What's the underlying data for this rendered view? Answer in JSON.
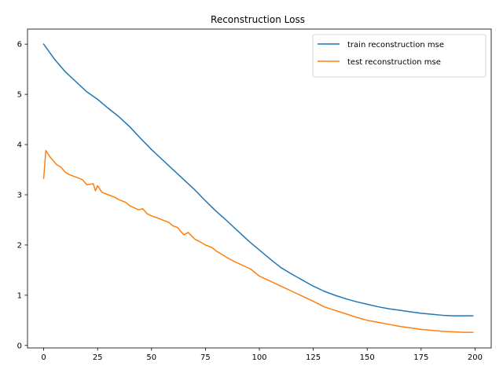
{
  "chart_data": {
    "type": "line",
    "title": "Reconstruction Loss",
    "xlabel": "",
    "ylabel": "",
    "xlim": [
      -7.5,
      207.5
    ],
    "ylim": [
      -0.05,
      6.3
    ],
    "x_ticks": [
      0,
      25,
      50,
      75,
      100,
      125,
      150,
      175,
      200
    ],
    "y_ticks": [
      0,
      1,
      2,
      3,
      4,
      5,
      6
    ],
    "grid": false,
    "legend_position": "top-right",
    "series": [
      {
        "name": "train reconstruction mse",
        "color": "#1f77b4",
        "x": [
          0,
          5,
          10,
          15,
          20,
          25,
          30,
          35,
          40,
          45,
          50,
          55,
          60,
          65,
          70,
          75,
          80,
          85,
          90,
          95,
          100,
          105,
          110,
          115,
          120,
          125,
          130,
          135,
          140,
          145,
          150,
          155,
          160,
          165,
          170,
          175,
          180,
          185,
          190,
          195,
          199
        ],
        "y": [
          6.0,
          5.7,
          5.45,
          5.25,
          5.05,
          4.9,
          4.72,
          4.55,
          4.35,
          4.12,
          3.9,
          3.7,
          3.5,
          3.3,
          3.1,
          2.88,
          2.67,
          2.48,
          2.28,
          2.08,
          1.9,
          1.72,
          1.55,
          1.42,
          1.3,
          1.18,
          1.08,
          1.0,
          0.93,
          0.87,
          0.82,
          0.77,
          0.73,
          0.7,
          0.67,
          0.64,
          0.62,
          0.6,
          0.59,
          0.59,
          0.59
        ]
      },
      {
        "name": "test reconstruction mse",
        "color": "#ff7f0e",
        "x": [
          0,
          1,
          3,
          6,
          8,
          10,
          12,
          15,
          18,
          20,
          23,
          24,
          25,
          27,
          30,
          33,
          35,
          38,
          40,
          44,
          46,
          48,
          50,
          52,
          55,
          58,
          60,
          62,
          65,
          67,
          70,
          73,
          75,
          78,
          80,
          85,
          88,
          92,
          96,
          100,
          105,
          110,
          115,
          120,
          125,
          130,
          135,
          140,
          145,
          150,
          155,
          160,
          165,
          170,
          175,
          180,
          185,
          190,
          195,
          199
        ],
        "y": [
          3.33,
          3.88,
          3.75,
          3.6,
          3.55,
          3.45,
          3.4,
          3.35,
          3.3,
          3.2,
          3.22,
          3.08,
          3.18,
          3.05,
          3.0,
          2.95,
          2.9,
          2.85,
          2.78,
          2.7,
          2.72,
          2.62,
          2.58,
          2.55,
          2.5,
          2.45,
          2.38,
          2.35,
          2.2,
          2.25,
          2.12,
          2.05,
          2.0,
          1.95,
          1.88,
          1.75,
          1.68,
          1.6,
          1.52,
          1.38,
          1.28,
          1.18,
          1.08,
          0.98,
          0.88,
          0.77,
          0.7,
          0.63,
          0.56,
          0.5,
          0.46,
          0.42,
          0.38,
          0.35,
          0.32,
          0.3,
          0.28,
          0.27,
          0.26,
          0.26
        ]
      }
    ]
  }
}
